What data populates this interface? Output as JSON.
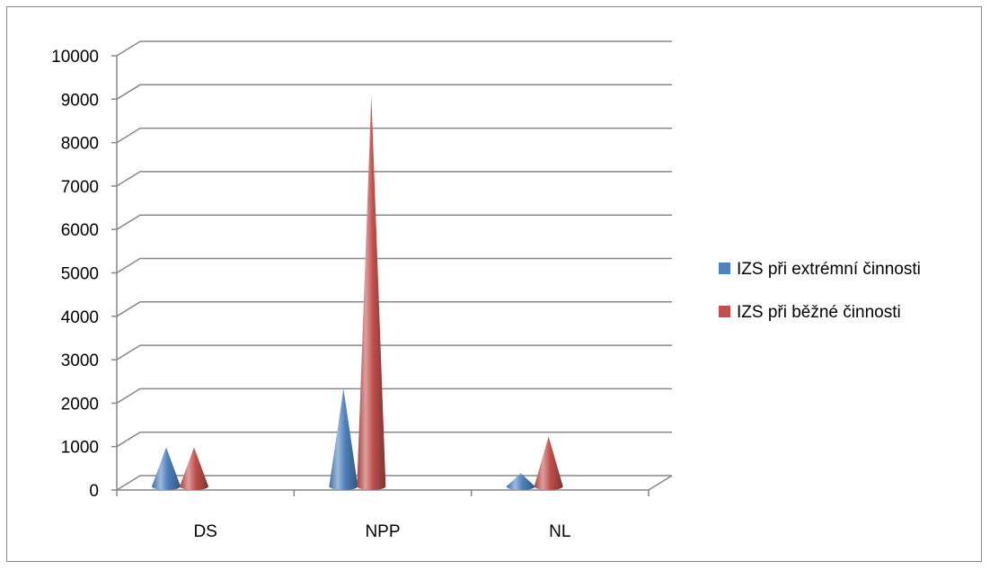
{
  "chart_data": {
    "type": "bar",
    "bar_shape": "cone-3d",
    "categories": [
      "DS",
      "NPP",
      "NL"
    ],
    "series": [
      {
        "name": "IZS při extrémní činnosti",
        "values": [
          900,
          2250,
          300
        ],
        "color": "#4F81BD"
      },
      {
        "name": "IZS při běžné činnosti",
        "values": [
          900,
          9000,
          1150
        ],
        "color": "#C0504D"
      }
    ],
    "ylim": [
      0,
      10000
    ],
    "yticks": [
      "0",
      "1000",
      "2000",
      "3000",
      "4000",
      "5000",
      "6000",
      "7000",
      "8000",
      "9000",
      "10000"
    ],
    "grid": true,
    "legend": "right",
    "title": "",
    "xlabel": "",
    "ylabel": ""
  }
}
